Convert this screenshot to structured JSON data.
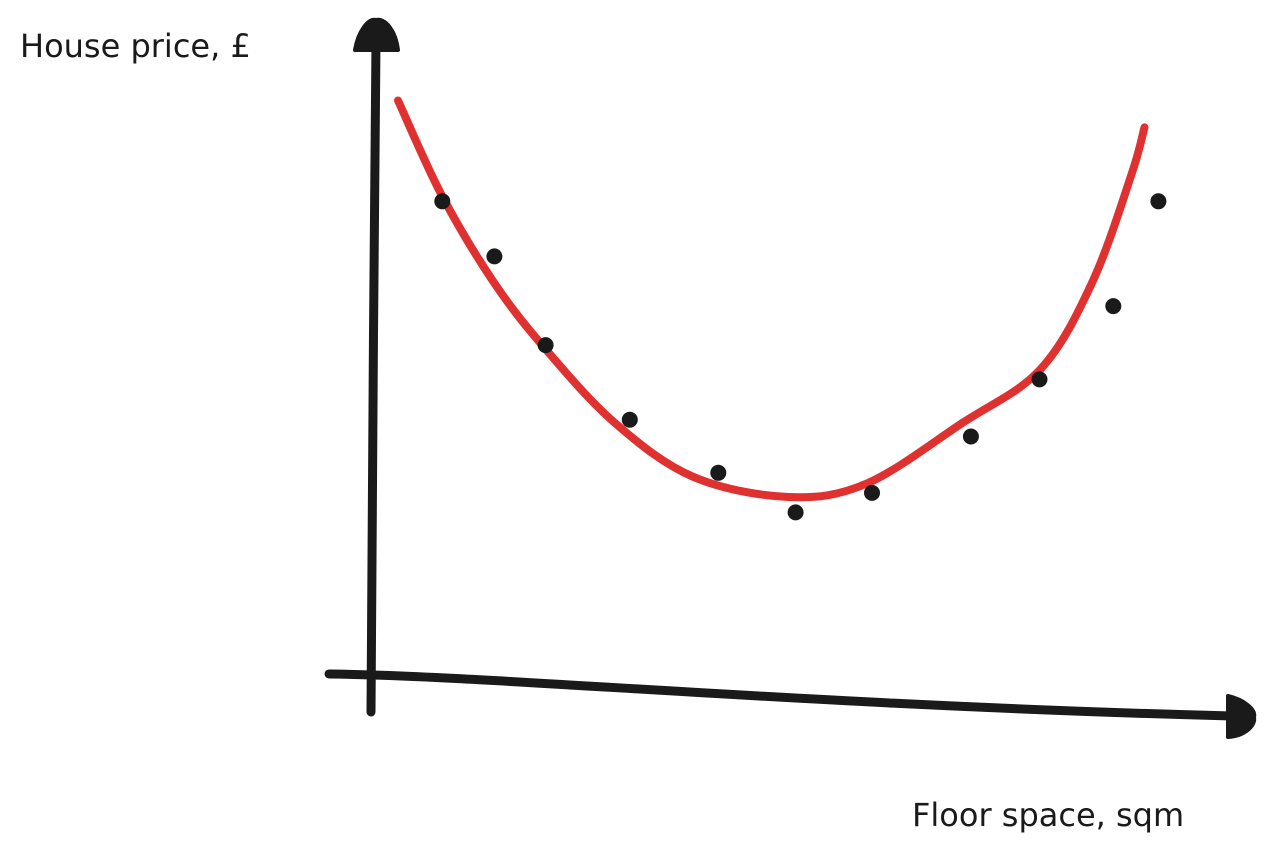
{
  "chart_data": {
    "type": "scatter",
    "title": "",
    "xlabel": "Floor space, sqm",
    "ylabel": "House price, £",
    "grid": false,
    "legend": "none",
    "ticks": "none",
    "xlim": [
      0,
      100
    ],
    "ylim": [
      0,
      100
    ],
    "points": [
      {
        "x": 8.1,
        "y": 76.0
      },
      {
        "x": 14.1,
        "y": 67.8
      },
      {
        "x": 20.0,
        "y": 54.6
      },
      {
        "x": 29.7,
        "y": 43.5
      },
      {
        "x": 39.9,
        "y": 35.6
      },
      {
        "x": 48.8,
        "y": 29.7
      },
      {
        "x": 57.6,
        "y": 32.6
      },
      {
        "x": 69.0,
        "y": 41.0
      },
      {
        "x": 76.9,
        "y": 49.5
      },
      {
        "x": 85.4,
        "y": 60.4
      },
      {
        "x": 90.6,
        "y": 76.0
      }
    ],
    "fit_curve": [
      {
        "x": 3.0,
        "y": 91.0
      },
      {
        "x": 8.0,
        "y": 77.0
      },
      {
        "x": 14.0,
        "y": 64.0
      },
      {
        "x": 20.0,
        "y": 54.0
      },
      {
        "x": 28.0,
        "y": 43.0
      },
      {
        "x": 37.0,
        "y": 35.0
      },
      {
        "x": 48.0,
        "y": 32.0
      },
      {
        "x": 57.0,
        "y": 34.0
      },
      {
        "x": 68.0,
        "y": 43.0
      },
      {
        "x": 77.0,
        "y": 51.0
      },
      {
        "x": 83.0,
        "y": 64.0
      },
      {
        "x": 87.5,
        "y": 80.0
      },
      {
        "x": 89.0,
        "y": 87.0
      }
    ],
    "colors": {
      "points": "#1a1a1a",
      "fit_curve": "#e03131",
      "axes": "#1a1a1a"
    }
  }
}
